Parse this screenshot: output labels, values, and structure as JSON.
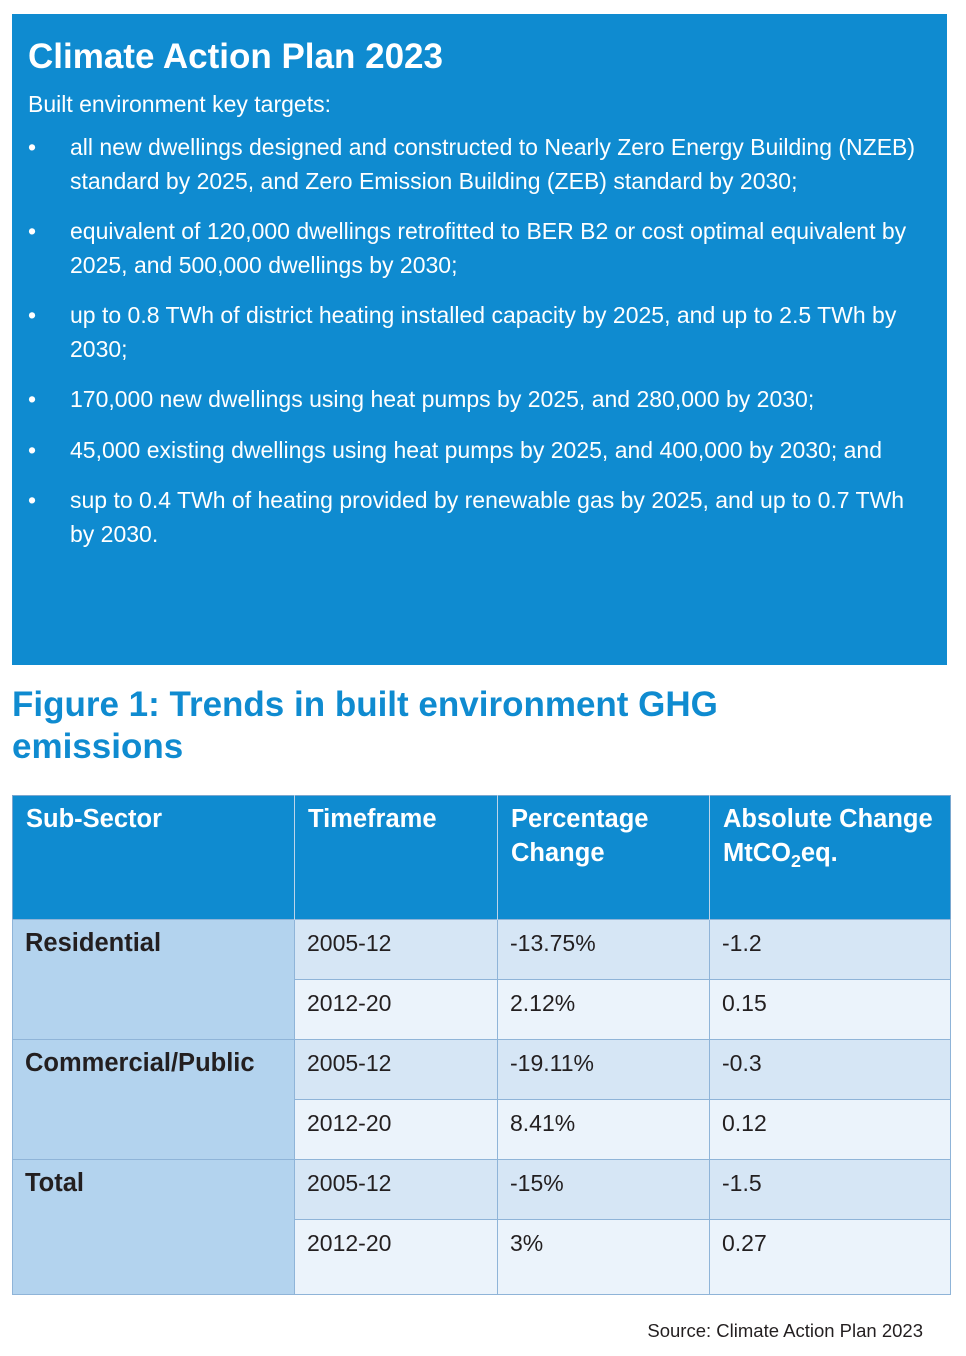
{
  "box": {
    "title": "Climate Action Plan 2023",
    "intro": "Built environment key targets:",
    "bullet_glyph": "•",
    "targets": [
      "all new dwellings designed and constructed to Nearly Zero Energy Building (NZEB) standard by 2025, and Zero Emission Building (ZEB) standard by 2030;",
      "equivalent of 120,000 dwellings retrofitted to BER B2 or cost optimal equivalent by 2025, and 500,000 dwellings by 2030;",
      "up to 0.8 TWh of district heating installed capacity by 2025, and up to 2.5 TWh by 2030;",
      "170,000 new dwellings using heat pumps by 2025, and 280,000 by 2030;",
      "45,000 existing dwellings using heat pumps by 2025, and 400,000 by 2030; and",
      "sup to 0.4 TWh of heating provided by renewable gas by 2025, and up to 0.7 TWh by 2030."
    ]
  },
  "figure": {
    "title": "Figure 1: Trends in built environment GHG emissions"
  },
  "table": {
    "headers": {
      "sub_sector": "Sub-Sector",
      "timeframe": "Timeframe",
      "percentage": "Percentage Change",
      "absolute_pre": "Absolute Change MtCO",
      "absolute_sub": "2",
      "absolute_post": "eq."
    },
    "groups": [
      {
        "sector": "Residential",
        "rows": [
          {
            "timeframe": "2005-12",
            "percentage": "-13.75%",
            "absolute": "-1.2"
          },
          {
            "timeframe": "2012-20",
            "percentage": "2.12%",
            "absolute": "0.15"
          }
        ]
      },
      {
        "sector": "Commercial/Public",
        "rows": [
          {
            "timeframe": "2005-12",
            "percentage": "-19.11%",
            "absolute": "-0.3"
          },
          {
            "timeframe": "2012-20",
            "percentage": "8.41%",
            "absolute": "0.12"
          }
        ]
      },
      {
        "sector": "Total",
        "rows": [
          {
            "timeframe": "2005-12",
            "percentage": "-15%",
            "absolute": "-1.5"
          },
          {
            "timeframe": "2012-20",
            "percentage": "3%",
            "absolute": "0.27"
          }
        ]
      }
    ]
  },
  "source": "Source: Climate Action Plan 2023",
  "colors": {
    "brand_blue": "#0f8bd0",
    "sector_cell": "#b3d3ee",
    "row_shade": "#d6e6f5",
    "row_light": "#ebf3fb"
  }
}
